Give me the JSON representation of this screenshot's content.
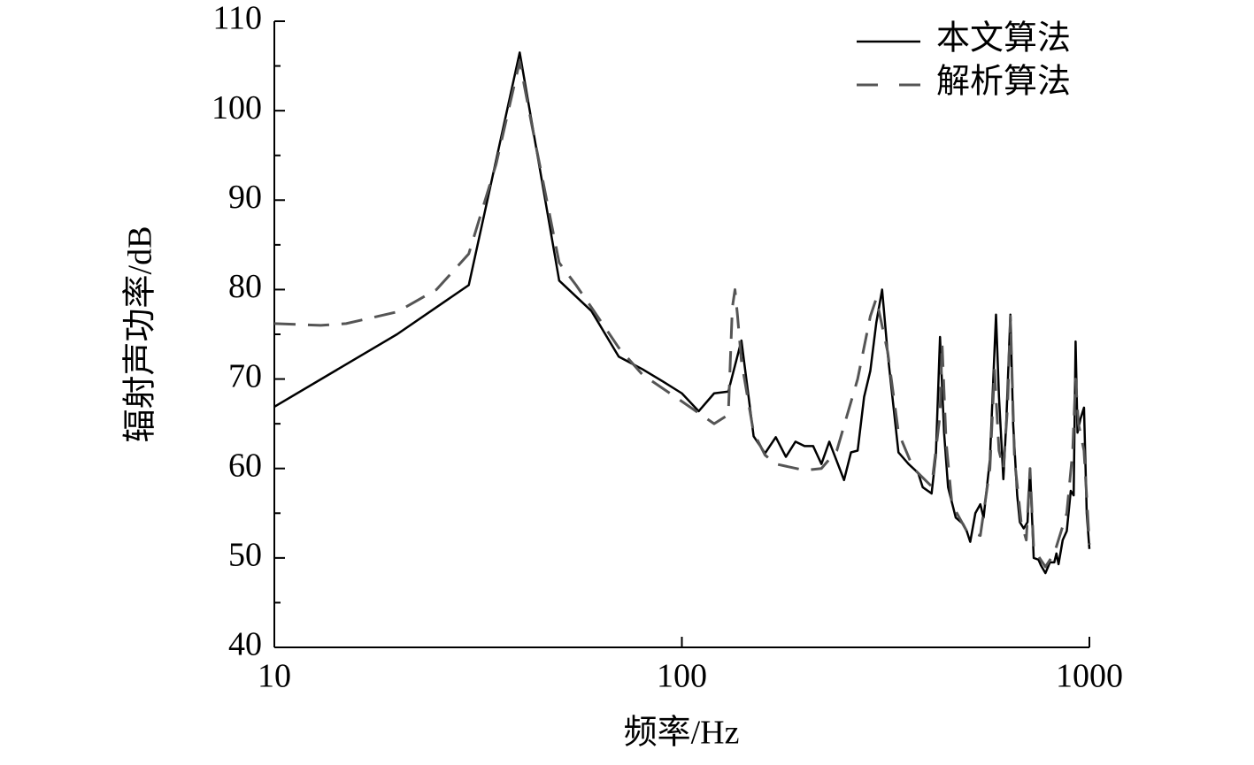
{
  "chart_data": {
    "type": "line",
    "xlabel": "频率/Hz",
    "ylabel": "辐射声功率/dB",
    "xscale": "log",
    "xlim": [
      10,
      1000
    ],
    "xticks": [
      10,
      100,
      1000
    ],
    "ylim": [
      40,
      110
    ],
    "yticks": [
      40,
      50,
      60,
      70,
      80,
      90,
      100,
      110
    ],
    "yminorticks": [
      45,
      55,
      65,
      75,
      85,
      95,
      105
    ],
    "legend": "upper right",
    "series": [
      {
        "name": "本文算法",
        "color": "#000000",
        "style": "solid",
        "x": [
          10,
          20,
          30,
          40,
          50,
          60,
          70,
          80,
          90,
          100,
          110,
          120,
          130,
          140,
          150,
          160,
          170,
          180,
          190,
          200,
          210,
          220,
          230,
          250,
          260,
          270,
          280,
          290,
          300,
          310,
          320,
          340,
          360,
          380,
          390,
          410,
          420,
          430,
          440,
          450,
          470,
          490,
          500,
          510,
          525,
          540,
          550,
          570,
          590,
          600,
          615,
          625,
          640,
          650,
          665,
          675,
          690,
          705,
          715,
          730,
          750,
          760,
          780,
          800,
          820,
          830,
          840,
          860,
          880,
          900,
          915,
          925,
          935,
          950,
          970,
          985,
          1000
        ],
        "values": [
          66.9,
          75.0,
          80.5,
          106.5,
          81.0,
          77.6,
          72.5,
          71.1,
          69.7,
          68.4,
          66.4,
          68.4,
          68.6,
          74.3,
          63.6,
          61.7,
          63.5,
          61.3,
          63.0,
          62.5,
          62.5,
          60.5,
          63.0,
          58.7,
          61.8,
          62.0,
          68.0,
          70.9,
          76.3,
          80.0,
          72.8,
          61.8,
          60.5,
          59.5,
          57.9,
          57.2,
          61.5,
          74.7,
          64.0,
          57.9,
          54.5,
          53.8,
          53.0,
          51.8,
          55.0,
          56.0,
          54.5,
          61.0,
          77.2,
          68.0,
          58.8,
          65.0,
          77.2,
          65.0,
          57.0,
          54.0,
          53.3,
          54.0,
          60.0,
          50.0,
          49.8,
          49.2,
          48.3,
          49.5,
          49.5,
          50.5,
          49.3,
          52.0,
          53.0,
          57.5,
          57.0,
          74.2,
          64.0,
          65.5,
          66.8,
          55.0,
          51.0
        ]
      },
      {
        "name": "解析算法",
        "color": "#555555",
        "style": "dashed",
        "x": [
          10,
          13,
          15,
          20,
          25,
          30,
          35,
          40,
          43,
          50,
          55,
          60,
          70,
          80,
          100,
          120,
          130,
          133,
          135,
          137,
          140,
          150,
          160,
          170,
          200,
          220,
          240,
          270,
          290,
          300,
          320,
          340,
          370,
          410,
          430,
          435,
          445,
          460,
          500,
          540,
          570,
          585,
          600,
          615,
          630,
          640,
          655,
          680,
          700,
          715,
          730,
          780,
          820,
          880,
          910,
          925,
          940,
          970,
          1000
        ],
        "values": [
          76.2,
          76.0,
          76.2,
          77.5,
          80.0,
          84.0,
          94.0,
          105.5,
          98.0,
          83.0,
          80.5,
          78.0,
          73.5,
          70.5,
          67.5,
          65.0,
          66.0,
          78.0,
          80.0,
          77.0,
          72.0,
          64.0,
          61.5,
          60.5,
          59.8,
          60.0,
          62.0,
          70.0,
          77.0,
          79.0,
          73.0,
          64.0,
          60.0,
          58.0,
          66.0,
          74.0,
          63.0,
          56.0,
          53.0,
          52.5,
          60.0,
          71.0,
          62.0,
          60.0,
          67.0,
          77.0,
          61.0,
          54.0,
          52.0,
          60.0,
          51.0,
          49.0,
          50.5,
          55.0,
          62.0,
          70.0,
          65.0,
          62.0,
          51.5
        ]
      }
    ]
  }
}
